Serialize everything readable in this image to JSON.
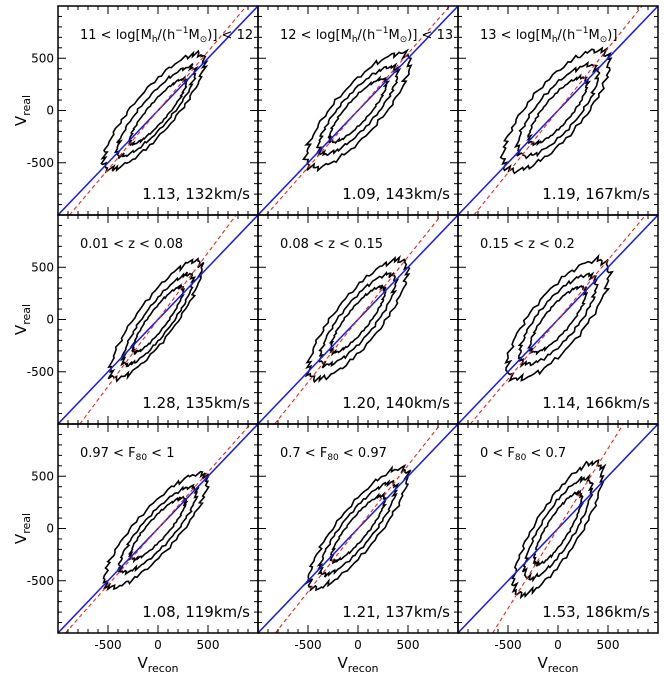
{
  "figure": {
    "xlabel_main": "V",
    "xlabel_sub": "recon",
    "ylabel_main": "V",
    "ylabel_sub": "real"
  },
  "chart_data": [
    {
      "type": "contour",
      "row": 0,
      "col": 0,
      "label_parts": [
        {
          "t": "11 < log[M"
        },
        {
          "t": "h",
          "sub": true
        },
        {
          "t": "/(h"
        },
        {
          "t": "−1",
          "sup": true
        },
        {
          "t": "M"
        },
        {
          "t": "⊙",
          "sub": true
        },
        {
          "t": ")] < 12"
        }
      ],
      "stats": "1.13, 132km/s",
      "slope": 1.13,
      "dispersion_kms": 132,
      "contours": [
        {
          "cx": -40,
          "cy": -10,
          "a": 720,
          "b": 200,
          "angle": 48
        },
        {
          "cx": -20,
          "cy": -10,
          "a": 560,
          "b": 145,
          "angle": 48
        },
        {
          "cx": 0,
          "cy": -10,
          "a": 410,
          "b": 95,
          "angle": 48
        }
      ]
    },
    {
      "type": "contour",
      "row": 0,
      "col": 1,
      "label_parts": [
        {
          "t": "12 < log[M"
        },
        {
          "t": "h",
          "sub": true
        },
        {
          "t": "/(h"
        },
        {
          "t": "−1",
          "sup": true
        },
        {
          "t": "M"
        },
        {
          "t": "⊙",
          "sub": true
        },
        {
          "t": ")] < 13"
        }
      ],
      "stats": "1.09, 143km/s",
      "slope": 1.09,
      "dispersion_kms": 143,
      "contours": [
        {
          "cx": 0,
          "cy": 0,
          "a": 720,
          "b": 225,
          "angle": 47
        },
        {
          "cx": 0,
          "cy": 0,
          "a": 550,
          "b": 165,
          "angle": 47
        },
        {
          "cx": 0,
          "cy": 0,
          "a": 400,
          "b": 110,
          "angle": 47
        }
      ]
    },
    {
      "type": "contour",
      "row": 0,
      "col": 2,
      "label_parts": [
        {
          "t": "13 < log[M"
        },
        {
          "t": "h",
          "sub": true
        },
        {
          "t": "/(h"
        },
        {
          "t": "−1",
          "sup": true
        },
        {
          "t": "M"
        },
        {
          "t": "⊙",
          "sub": true
        },
        {
          "t": ")]"
        }
      ],
      "stats": "1.19, 167km/s",
      "slope": 1.19,
      "dispersion_kms": 167,
      "contours": [
        {
          "cx": -20,
          "cy": 0,
          "a": 740,
          "b": 260,
          "angle": 48
        },
        {
          "cx": 0,
          "cy": 0,
          "a": 560,
          "b": 195,
          "angle": 48
        },
        {
          "cx": 0,
          "cy": 0,
          "a": 410,
          "b": 130,
          "angle": 48
        }
      ]
    },
    {
      "type": "contour",
      "row": 1,
      "col": 0,
      "label_parts": [
        {
          "t": "0.01 < z < 0.08"
        }
      ],
      "stats": "1.28, 135km/s",
      "slope": 1.28,
      "dispersion_kms": 135,
      "contours": [
        {
          "cx": -20,
          "cy": 0,
          "a": 700,
          "b": 185,
          "angle": 52
        },
        {
          "cx": 0,
          "cy": 0,
          "a": 540,
          "b": 135,
          "angle": 52
        },
        {
          "cx": 0,
          "cy": 0,
          "a": 390,
          "b": 90,
          "angle": 52
        }
      ]
    },
    {
      "type": "contour",
      "row": 1,
      "col": 1,
      "label_parts": [
        {
          "t": "0.08 < z < 0.15"
        }
      ],
      "stats": "1.20, 140km/s",
      "slope": 1.2,
      "dispersion_kms": 140,
      "contours": [
        {
          "cx": 0,
          "cy": 0,
          "a": 720,
          "b": 225,
          "angle": 50
        },
        {
          "cx": 0,
          "cy": 0,
          "a": 550,
          "b": 165,
          "angle": 50
        },
        {
          "cx": 0,
          "cy": 0,
          "a": 400,
          "b": 110,
          "angle": 50
        }
      ]
    },
    {
      "type": "contour",
      "row": 1,
      "col": 2,
      "label_parts": [
        {
          "t": "0.15 < z < 0.2"
        }
      ],
      "stats": "1.14, 166km/s",
      "slope": 1.14,
      "dispersion_kms": 166,
      "contours": [
        {
          "cx": 0,
          "cy": 0,
          "a": 720,
          "b": 255,
          "angle": 49
        },
        {
          "cx": 0,
          "cy": 0,
          "a": 540,
          "b": 190,
          "angle": 49
        },
        {
          "cx": 0,
          "cy": 0,
          "a": 400,
          "b": 125,
          "angle": 49
        }
      ]
    },
    {
      "type": "contour",
      "row": 2,
      "col": 0,
      "label_parts": [
        {
          "t": "0.97 < F"
        },
        {
          "t": "80",
          "sub": true
        },
        {
          "t": " < 1"
        }
      ],
      "stats": "1.08, 119km/s",
      "slope": 1.08,
      "dispersion_kms": 119,
      "contours": [
        {
          "cx": -20,
          "cy": -20,
          "a": 720,
          "b": 205,
          "angle": 47
        },
        {
          "cx": 0,
          "cy": -10,
          "a": 540,
          "b": 150,
          "angle": 47
        },
        {
          "cx": 0,
          "cy": 0,
          "a": 390,
          "b": 100,
          "angle": 47
        }
      ]
    },
    {
      "type": "contour",
      "row": 2,
      "col": 1,
      "label_parts": [
        {
          "t": "0.7 < F"
        },
        {
          "t": "80",
          "sub": true
        },
        {
          "t": " < 0.97"
        }
      ],
      "stats": "1.21, 137km/s",
      "slope": 1.21,
      "dispersion_kms": 137,
      "contours": [
        {
          "cx": 0,
          "cy": 0,
          "a": 730,
          "b": 200,
          "angle": 50
        },
        {
          "cx": 0,
          "cy": 0,
          "a": 560,
          "b": 150,
          "angle": 50
        },
        {
          "cx": 0,
          "cy": 0,
          "a": 400,
          "b": 100,
          "angle": 50
        }
      ]
    },
    {
      "type": "contour",
      "row": 2,
      "col": 2,
      "label_parts": [
        {
          "t": "0 < F"
        },
        {
          "t": "80",
          "sub": true
        },
        {
          "t": " < 0.7"
        }
      ],
      "stats": "1.53, 186km/s",
      "slope": 1.53,
      "dispersion_kms": 186,
      "contours": [
        {
          "cx": 0,
          "cy": 0,
          "a": 740,
          "b": 220,
          "angle": 57
        },
        {
          "cx": 0,
          "cy": 0,
          "a": 560,
          "b": 165,
          "angle": 57
        },
        {
          "cx": 0,
          "cy": 0,
          "a": 400,
          "b": 110,
          "angle": 57
        }
      ]
    }
  ],
  "axes": {
    "xlim": [
      -1000,
      1000
    ],
    "ylim": [
      -1000,
      1000
    ],
    "xticks": [
      -500,
      0,
      500
    ],
    "yticks": [
      -500,
      0,
      500
    ],
    "xtick_labels": [
      "-500",
      "0",
      "500"
    ],
    "ytick_labels": [
      "-500",
      "0",
      "500"
    ]
  },
  "reference_lines": {
    "one_to_one": {
      "style": "solid",
      "color": "#1a1ae6"
    },
    "best_fit": {
      "style": "dashed",
      "color": "#e8281e"
    }
  },
  "colors": {
    "contour": "#000000",
    "frame": "#000000"
  }
}
